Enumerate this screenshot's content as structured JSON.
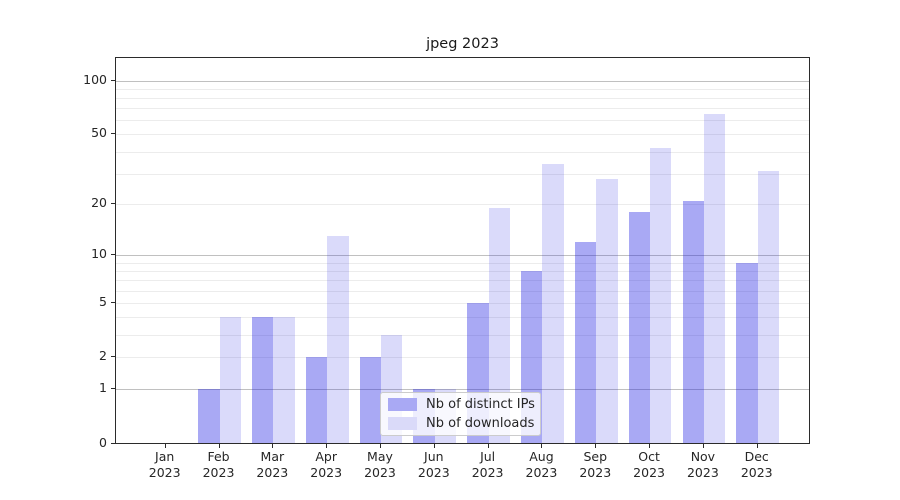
{
  "title": "jpeg 2023",
  "chart_data": {
    "type": "bar",
    "title": "jpeg 2023",
    "categories": [
      "Jan 2023",
      "Feb 2023",
      "Mar 2023",
      "Apr 2023",
      "May 2023",
      "Jun 2023",
      "Jul 2023",
      "Aug 2023",
      "Sep 2023",
      "Oct 2023",
      "Nov 2023",
      "Dec 2023"
    ],
    "month_labels": [
      [
        "Jan",
        "2023"
      ],
      [
        "Feb",
        "2023"
      ],
      [
        "Mar",
        "2023"
      ],
      [
        "Apr",
        "2023"
      ],
      [
        "May",
        "2023"
      ],
      [
        "Jun",
        "2023"
      ],
      [
        "Jul",
        "2023"
      ],
      [
        "Aug",
        "2023"
      ],
      [
        "Sep",
        "2023"
      ],
      [
        "Oct",
        "2023"
      ],
      [
        "Nov",
        "2023"
      ],
      [
        "Dec",
        "2023"
      ]
    ],
    "series": [
      {
        "name": "Nb of distinct IPs",
        "color": "rgba(30,30,225,0.38)",
        "color_hex": "#a9a9f4",
        "values": [
          0,
          1,
          4,
          2,
          2,
          1,
          5,
          8,
          12,
          18,
          21,
          9
        ]
      },
      {
        "name": "Nb of downloads",
        "color": "rgba(30,30,225,0.165)",
        "color_hex": "#dadaf9",
        "values": [
          0,
          4,
          4,
          13,
          3,
          1,
          19,
          34,
          28,
          42,
          65,
          31
        ]
      }
    ],
    "xlabel": "",
    "ylabel": "",
    "yscale": "log1p",
    "ylim": [
      0,
      135
    ],
    "y_major_ticks": [
      0,
      1,
      2,
      5,
      10,
      20,
      50,
      100
    ],
    "y_tick_labels": [
      "0",
      "1",
      "2",
      "5",
      "10",
      "20",
      "50",
      "100"
    ],
    "grid": "horizontal major + minor log gridlines",
    "legend_position": "lower center"
  },
  "legend": {
    "items": [
      {
        "label": "Nb of distinct IPs"
      },
      {
        "label": "Nb of downloads"
      }
    ]
  },
  "colors": {
    "bar_dark": "#a9a9f4",
    "bar_light": "#dadaf9",
    "grid_major": "#c0c0c0",
    "grid_minor": "#ececec",
    "axis": "#2b2b2b"
  }
}
